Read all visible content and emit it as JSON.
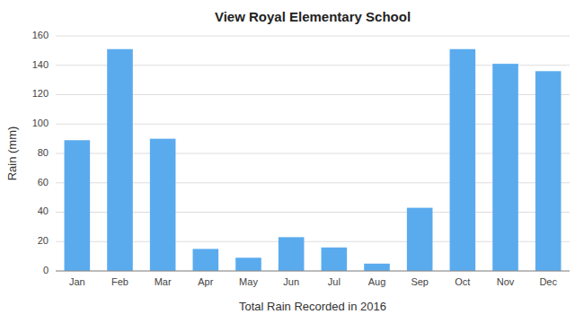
{
  "chart_data": {
    "type": "bar",
    "title": "View Royal Elementary School",
    "xlabel": "Total Rain Recorded in 2016",
    "ylabel": "Rain (mm)",
    "categories": [
      "Jan",
      "Feb",
      "Mar",
      "Apr",
      "May",
      "Jun",
      "Jul",
      "Aug",
      "Sep",
      "Oct",
      "Nov",
      "Dec"
    ],
    "values": [
      89,
      151,
      90,
      15,
      9,
      23,
      16,
      5,
      43,
      151,
      141,
      136
    ],
    "color": "#5aabee",
    "ylim": [
      0,
      160
    ],
    "yticks": [
      0,
      20,
      40,
      60,
      80,
      100,
      120,
      140,
      160
    ],
    "grid": true
  }
}
